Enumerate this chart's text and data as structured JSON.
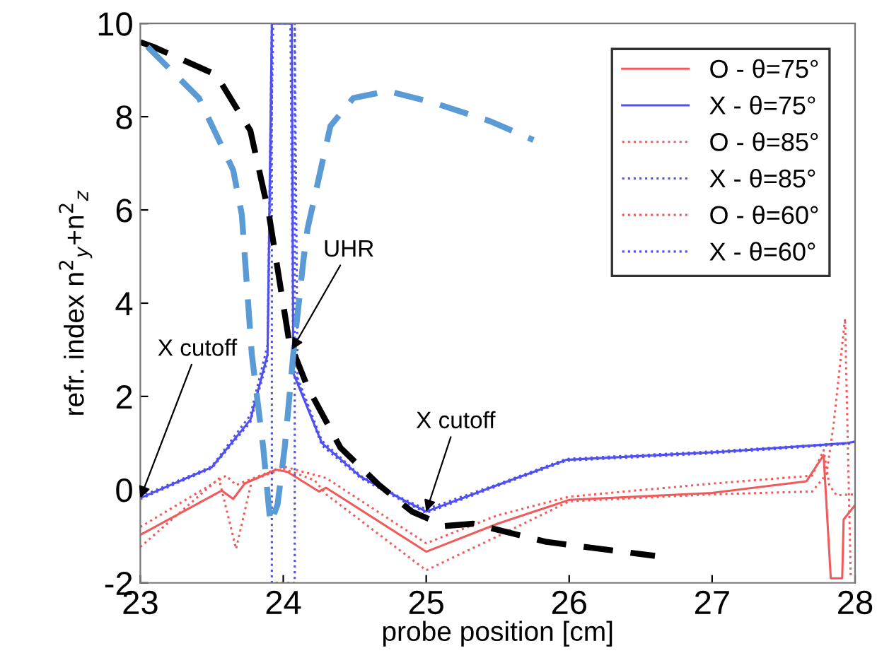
{
  "chart_data": {
    "type": "line",
    "xlabel": "probe position [cm]",
    "ylabel": "refr. index n$^{2}$$_{y}$+n$^{2}$$_{z}$",
    "xlim": [
      23,
      28
    ],
    "ylim": [
      -2,
      10
    ],
    "xticks": [
      23,
      24,
      25,
      26,
      27,
      28
    ],
    "yticks": [
      -2,
      0,
      2,
      4,
      6,
      8,
      10
    ],
    "legend": "top right",
    "grid": false,
    "series": [
      {
        "name": "O - θ=75°",
        "color": "#f05a5a",
        "line_style": "solid",
        "x": [
          23,
          23.57,
          23.65,
          23.73,
          23.95,
          24.03,
          24.25,
          24.3,
          25,
          25.5,
          26,
          27,
          27.66,
          27.78,
          27.83,
          27.91,
          27.92,
          28
        ],
        "values": [
          -0.97,
          -0.02,
          -0.2,
          0.13,
          0.43,
          0.38,
          -0.04,
          0.04,
          -1.33,
          -0.73,
          -0.22,
          -0.07,
          0.18,
          0.74,
          -1.9,
          -1.9,
          -0.64,
          -0.33
        ]
      },
      {
        "name": "X - θ=75°",
        "color": "#5050f0",
        "line_style": "solid",
        "x": [
          23,
          23.5,
          23.77,
          23.89,
          23.92,
          24.06,
          24.07,
          24.27,
          24.54,
          24.84,
          25,
          25.5,
          25.98,
          27,
          27.95,
          28
        ],
        "values": [
          -0.18,
          0.48,
          1.5,
          2.9,
          10,
          10,
          2.5,
          1.0,
          0.28,
          -0.22,
          -0.47,
          0.1,
          0.64,
          0.8,
          1.0,
          1.03
        ]
      },
      {
        "name": "O - θ=85°",
        "color": "#f05a5a",
        "line_style": "dotted",
        "x": [
          23,
          23.55,
          23.67,
          23.78,
          24,
          24.22,
          24.3,
          25,
          25.5,
          26,
          27,
          27.7,
          27.8,
          27.85,
          27.93,
          27.97
        ],
        "values": [
          -1.23,
          0.24,
          -1.27,
          0.2,
          0.45,
          0.2,
          -0.1,
          -1.73,
          -1.0,
          -0.25,
          -0.1,
          -0.04,
          0.33,
          1.4,
          3.67,
          -1.9
        ]
      },
      {
        "name": "X - θ=85°",
        "color": "#5050f0",
        "line_style": "dotted",
        "x": [
          23,
          23.5,
          23.77,
          23.89,
          23.92,
          23.92,
          24.08,
          24.08,
          24.1,
          24.27,
          24.54,
          24.84,
          25,
          25.5,
          25.98,
          27,
          27.95,
          28
        ],
        "values": [
          -0.15,
          0.5,
          1.6,
          3.1,
          10,
          -2,
          -2,
          10,
          2.4,
          1.05,
          0.3,
          -0.2,
          -0.42,
          0.12,
          0.66,
          0.82,
          1.0,
          1.03
        ]
      },
      {
        "name": "O - θ=60°",
        "color": "#f05a5a",
        "line_style": "dotted",
        "x": [
          23,
          23.6,
          23.67,
          24,
          24.3,
          25,
          25.5,
          26,
          27,
          27.7,
          27.78,
          27.82,
          27.87,
          28
        ],
        "values": [
          -0.8,
          0.3,
          0.1,
          0.5,
          0.25,
          -1.15,
          -0.55,
          -0.15,
          0.13,
          0.3,
          0.85,
          0.1,
          -0.12,
          -0.1
        ]
      },
      {
        "name": "X - θ=60°",
        "color": "#5050f0",
        "line_style": "dotted",
        "x": [
          23,
          23.5,
          23.77,
          23.89,
          23.93,
          24.05,
          24.07,
          24.27,
          24.54,
          24.84,
          25,
          25.5,
          25.98,
          27,
          27.95,
          28
        ],
        "values": [
          -0.2,
          0.46,
          1.45,
          2.8,
          10,
          10,
          2.6,
          0.95,
          0.25,
          -0.25,
          -0.5,
          0.08,
          0.62,
          0.78,
          0.98,
          1.02
        ]
      },
      {
        "color": "#000000",
        "line_style": "dashed",
        "x": [
          23.0,
          23.09,
          23.53,
          23.77,
          23.9,
          24.04,
          24.17,
          24.4,
          24.67,
          24.9,
          25.13,
          25.33,
          25.84,
          26.6
        ],
        "values": [
          9.6,
          9.5,
          8.9,
          7.7,
          5.9,
          3.2,
          2.2,
          0.9,
          0.1,
          -0.47,
          -0.78,
          -0.73,
          -1.12,
          -1.42
        ]
      },
      {
        "color": "#5b9bd5",
        "line_style": "dashed",
        "x": [
          23.05,
          23.41,
          23.65,
          23.71,
          23.78,
          23.86,
          23.91,
          23.96,
          24.01,
          24.07,
          24.14,
          24.17,
          24.33,
          24.49,
          24.73,
          25.05,
          25.45,
          25.75
        ],
        "values": [
          9.5,
          8.4,
          6.85,
          5.9,
          2.9,
          0.9,
          -0.73,
          -0.32,
          0.9,
          2.9,
          4.9,
          5.6,
          7.8,
          8.4,
          8.55,
          8.3,
          7.9,
          7.5
        ]
      }
    ],
    "annotations": [
      {
        "text": "X cutoff",
        "x": 23,
        "y": -0.18
      },
      {
        "text": "UHR",
        "x": 24.06,
        "y": 3.0
      },
      {
        "text": "X cutoff",
        "x": 25,
        "y": -0.47
      }
    ]
  }
}
